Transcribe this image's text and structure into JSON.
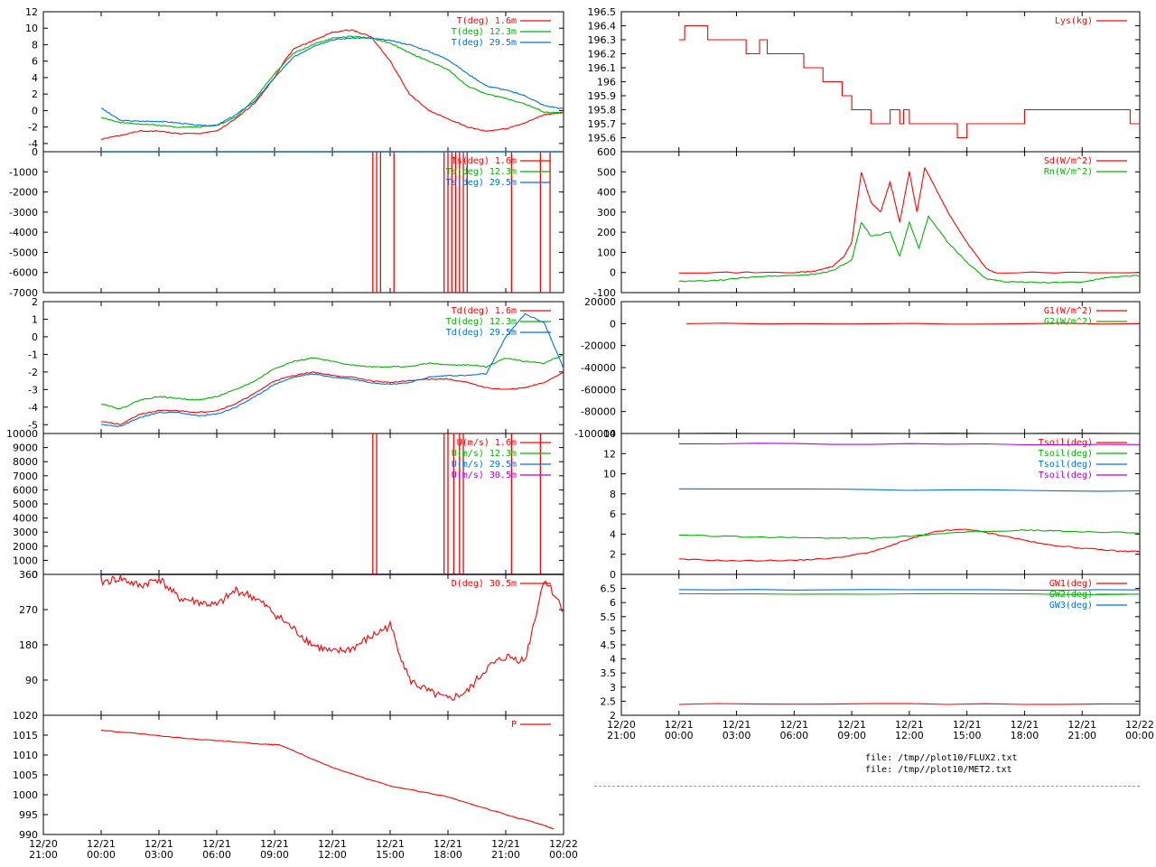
{
  "colors": {
    "red": "#ff0000",
    "green": "#00b400",
    "blue": "#0070e0",
    "purple": "#b000e0"
  },
  "files": [
    "file: /tmp//plot10/FLUX2.txt",
    "file: /tmp//plot10/MET2.txt"
  ],
  "chart_data": [
    {
      "type": "line",
      "ylim": [
        -5,
        12
      ],
      "yticks": [
        "-4",
        "-2",
        "0",
        "2",
        "4",
        "6",
        "8",
        "10",
        "12"
      ],
      "ytick_values": [
        -4,
        -2,
        0,
        2,
        4,
        6,
        8,
        10,
        12
      ],
      "series": [
        {
          "name": "T(deg)  1.6m",
          "color": "red",
          "x": [
            0,
            1,
            2,
            3,
            4,
            5,
            6,
            7,
            8,
            9,
            9.5,
            10,
            11,
            12,
            13,
            14,
            15,
            16,
            17,
            18,
            19,
            20,
            21,
            22,
            23,
            24
          ],
          "values": [
            -3.5,
            -3,
            -2.5,
            -2.5,
            -2.8,
            -2.8,
            -2.5,
            -1,
            1,
            4,
            6,
            7.5,
            8.5,
            9.5,
            9.8,
            9,
            6,
            2,
            0,
            -1,
            -2,
            -2.5,
            -2.2,
            -1.5,
            -0.5,
            -0.2
          ]
        },
        {
          "name": "T(deg) 12.3m",
          "color": "green",
          "x": [
            0,
            1,
            2,
            3,
            4,
            5,
            6,
            7,
            8,
            9,
            10,
            11,
            12,
            13,
            14,
            15,
            16,
            17,
            18,
            19,
            20,
            21,
            22,
            23,
            24
          ],
          "values": [
            -0.8,
            -1.5,
            -1.6,
            -1.8,
            -2,
            -2,
            -1.8,
            -0.8,
            1.5,
            4.5,
            7,
            8,
            8.8,
            9,
            8.8,
            8.2,
            7,
            6,
            5,
            3,
            2,
            1.5,
            0.8,
            -0.2,
            -0.3
          ]
        },
        {
          "name": "T(deg) 29.5m",
          "color": "blue",
          "x": [
            0,
            1,
            2,
            3,
            4,
            5,
            6,
            7,
            8,
            9,
            10,
            11,
            12,
            13,
            14,
            15,
            16,
            17,
            18,
            19,
            20,
            21,
            22,
            23,
            24
          ],
          "values": [
            0.3,
            -1.2,
            -1.3,
            -1.3,
            -1.5,
            -1.8,
            -1.8,
            -0.5,
            1.2,
            4,
            6.5,
            7.8,
            8.6,
            8.8,
            8.8,
            8.5,
            8,
            7.2,
            6.2,
            4.5,
            3,
            2.5,
            1.8,
            0.6,
            0.2
          ]
        }
      ]
    },
    {
      "type": "line",
      "ylim": [
        -7000,
        0
      ],
      "yticks": [
        "0",
        "-1000",
        "-2000",
        "-3000",
        "-4000",
        "-5000",
        "-6000",
        "-7000"
      ],
      "ytick_values": [
        0,
        -1000,
        -2000,
        -3000,
        -4000,
        -5000,
        -6000,
        -7000
      ],
      "series": [
        {
          "name": "Ts(deg)  1.6m",
          "color": "red",
          "values": [
            0
          ],
          "spikes": [
            14.1,
            14.3,
            14.5,
            15.2,
            17.8,
            18,
            18.2,
            18.4,
            18.6,
            18.8,
            19,
            21.3,
            22.8,
            23.3
          ]
        },
        {
          "name": "Ts(deg) 12.3m",
          "color": "green",
          "values": [
            0
          ]
        },
        {
          "name": "Ts(deg) 29.5m",
          "color": "blue",
          "values": [
            0
          ]
        }
      ]
    },
    {
      "type": "line",
      "ylim": [
        -5.5,
        2
      ],
      "yticks": [
        "-5",
        "-4",
        "-3",
        "-2",
        "-1",
        "0",
        "1",
        "2"
      ],
      "ytick_values": [
        -5,
        -4,
        -3,
        -2,
        -1,
        0,
        1,
        2
      ],
      "series": [
        {
          "name": "Td(deg)  1.6m",
          "color": "red",
          "x": [
            0,
            1,
            2,
            3,
            4,
            5,
            6,
            7,
            8,
            9,
            10,
            11,
            12,
            13,
            14,
            15,
            16,
            17,
            18,
            19,
            20,
            21,
            22,
            23,
            24
          ],
          "values": [
            -4.8,
            -5,
            -4.4,
            -4.2,
            -4.2,
            -4.3,
            -4.2,
            -3.8,
            -3.2,
            -2.5,
            -2.2,
            -2,
            -2.2,
            -2.3,
            -2.5,
            -2.6,
            -2.5,
            -2.4,
            -2.4,
            -2.6,
            -2.9,
            -3,
            -2.9,
            -2.6,
            -2
          ]
        },
        {
          "name": "Td(deg) 12.3m",
          "color": "green",
          "x": [
            0,
            1,
            2,
            3,
            4,
            5,
            6,
            7,
            8,
            9,
            10,
            11,
            12,
            13,
            14,
            15,
            16,
            17,
            18,
            19,
            20,
            21,
            22,
            23,
            24
          ],
          "values": [
            -3.8,
            -4.1,
            -3.6,
            -3.4,
            -3.5,
            -3.6,
            -3.4,
            -3,
            -2.5,
            -1.8,
            -1.4,
            -1.2,
            -1.4,
            -1.6,
            -1.7,
            -1.7,
            -1.7,
            -1.5,
            -1.6,
            -1.6,
            -1.7,
            -1.2,
            -1.4,
            -1.5,
            -1
          ]
        },
        {
          "name": "Td(deg) 29.5m",
          "color": "blue",
          "x": [
            0,
            1,
            2,
            3,
            4,
            5,
            6,
            7,
            8,
            9,
            10,
            11,
            12,
            13,
            14,
            15,
            16,
            17,
            18,
            19,
            20,
            21,
            22,
            23,
            24
          ],
          "values": [
            -5,
            -5.1,
            -4.6,
            -4.3,
            -4.3,
            -4.5,
            -4.4,
            -4,
            -3.4,
            -2.7,
            -2.3,
            -2.1,
            -2.3,
            -2.4,
            -2.6,
            -2.7,
            -2.6,
            -2.3,
            -2.2,
            -2.2,
            -2.1,
            0,
            1.3,
            0.8,
            -1.8
          ]
        }
      ]
    },
    {
      "type": "line",
      "ylim": [
        0,
        10000
      ],
      "yticks": [
        "0",
        "1000",
        "2000",
        "3000",
        "4000",
        "5000",
        "6000",
        "7000",
        "8000",
        "9000",
        "10000"
      ],
      "ytick_values": [
        0,
        1000,
        2000,
        3000,
        4000,
        5000,
        6000,
        7000,
        8000,
        9000,
        10000
      ],
      "series": [
        {
          "name": "U(m/s)  1.6m",
          "color": "red",
          "values": [
            0
          ],
          "spikes": [
            14.1,
            14.3,
            17.8,
            18,
            18.3,
            18.6,
            18.8,
            21.3,
            22.8
          ]
        },
        {
          "name": "U(m/s) 12.3m",
          "color": "green",
          "values": [
            0
          ]
        },
        {
          "name": "U(m/s) 29.5m",
          "color": "blue",
          "values": [
            0
          ]
        },
        {
          "name": "U(m/s) 30.5m",
          "color": "purple",
          "values": [
            0
          ]
        }
      ]
    },
    {
      "type": "line",
      "ylim": [
        0,
        360
      ],
      "yticks": [
        "90",
        "180",
        "270",
        "360"
      ],
      "ytick_values": [
        90,
        180,
        270,
        360
      ],
      "series": [
        {
          "name": "D(deg)  30.5m",
          "color": "red",
          "x": [
            0,
            1,
            2,
            3,
            4,
            5,
            6,
            7,
            8,
            9,
            10,
            11,
            12,
            13,
            14,
            15,
            16,
            17,
            18,
            19,
            20,
            21,
            22,
            23,
            24
          ],
          "values": [
            340,
            350,
            330,
            350,
            300,
            290,
            280,
            320,
            300,
            260,
            220,
            180,
            160,
            170,
            200,
            230,
            90,
            60,
            40,
            60,
            120,
            150,
            140,
            350,
            270
          ]
        }
      ]
    },
    {
      "type": "line",
      "ylim": [
        990,
        1020
      ],
      "yticks": [
        "990",
        "995",
        "1000",
        "1005",
        "1010",
        "1015",
        "1020"
      ],
      "ytick_values": [
        990,
        995,
        1000,
        1005,
        1010,
        1015,
        1020
      ],
      "series": [
        {
          "name": "P",
          "color": "red",
          "x": [
            0,
            3,
            6,
            8.5,
            9.3,
            12,
            15,
            18,
            21,
            22.5,
            23.5
          ],
          "values": [
            1016.3,
            1014.8,
            1013.6,
            1012.7,
            1012.5,
            1006.8,
            1002.2,
            999.5,
            995,
            993,
            991.4
          ]
        }
      ],
      "xticks": [
        [
          "12/20",
          "21:00"
        ],
        [
          "12/21",
          "00:00"
        ],
        [
          "12/21",
          "03:00"
        ],
        [
          "12/21",
          "06:00"
        ],
        [
          "12/21",
          "09:00"
        ],
        [
          "12/21",
          "12:00"
        ],
        [
          "12/21",
          "15:00"
        ],
        [
          "12/21",
          "18:00"
        ],
        [
          "12/21",
          "21:00"
        ],
        [
          "12/22",
          "00:00"
        ]
      ]
    },
    {
      "type": "line",
      "ylim": [
        195.5,
        196.5
      ],
      "yticks": [
        "195.6",
        "195.7",
        "195.8",
        "195.9",
        "196",
        "196.1",
        "196.2",
        "196.3",
        "196.4",
        "196.5"
      ],
      "ytick_values": [
        195.6,
        195.7,
        195.8,
        195.9,
        196,
        196.1,
        196.2,
        196.3,
        196.4,
        196.5
      ],
      "series": [
        {
          "name": "Lys(kg)",
          "color": "red",
          "step": true,
          "x": [
            0,
            0.3,
            1.5,
            3.5,
            4.2,
            4.6,
            6,
            6.5,
            7.5,
            8.5,
            9,
            10,
            11,
            11.5,
            11.7,
            12,
            14.5,
            15,
            15.3,
            18,
            23.5,
            24
          ],
          "values": [
            196.3,
            196.4,
            196.3,
            196.2,
            196.3,
            196.2,
            196.2,
            196.1,
            196,
            195.9,
            195.8,
            195.7,
            195.8,
            195.7,
            195.8,
            195.7,
            195.6,
            195.7,
            195.7,
            195.8,
            195.7,
            195.7
          ]
        }
      ]
    },
    {
      "type": "line",
      "ylim": [
        -100,
        600
      ],
      "yticks": [
        "-100",
        "0",
        "100",
        "200",
        "300",
        "400",
        "500",
        "600"
      ],
      "ytick_values": [
        -100,
        0,
        100,
        200,
        300,
        400,
        500,
        600
      ],
      "series": [
        {
          "name": "Sd(W/m^2)",
          "color": "red",
          "x": [
            0,
            6,
            7,
            8,
            8.6,
            9,
            9.5,
            10,
            10.5,
            11,
            11.5,
            12,
            12.4,
            12.8,
            13.2,
            14,
            15,
            16,
            16.5,
            24
          ],
          "values": [
            0,
            0,
            5,
            30,
            80,
            150,
            500,
            350,
            300,
            450,
            250,
            500,
            300,
            520,
            450,
            300,
            150,
            20,
            0,
            0
          ]
        },
        {
          "name": "Rn(W/m^2)",
          "color": "green",
          "x": [
            0,
            2,
            4,
            6,
            7,
            8,
            9,
            9.5,
            10,
            11,
            11.5,
            12,
            12.5,
            13,
            14,
            15,
            16,
            17,
            19,
            21,
            22,
            23,
            24
          ],
          "values": [
            -45,
            -40,
            -20,
            -15,
            -10,
            10,
            60,
            250,
            180,
            200,
            80,
            250,
            120,
            280,
            150,
            50,
            -30,
            -45,
            -50,
            -48,
            -30,
            -20,
            -15
          ]
        }
      ]
    },
    {
      "type": "line",
      "ylim": [
        -100000,
        20000
      ],
      "yticks": [
        "20000",
        "0",
        "-20000",
        "-40000",
        "-60000",
        "-80000",
        "-100000"
      ],
      "ytick_values": [
        20000,
        0,
        -20000,
        -40000,
        -60000,
        -80000,
        -100000
      ],
      "series": [
        {
          "name": "G1(W/m^2)",
          "color": "red",
          "x": [
            0.4,
            24
          ],
          "values": [
            0,
            0
          ]
        },
        {
          "name": "G2(W/m^2)",
          "color": "green",
          "x": [
            0,
            24
          ],
          "values": [
            -100000,
            -100000
          ]
        }
      ]
    },
    {
      "type": "line",
      "ylim": [
        0,
        14
      ],
      "yticks": [
        "0",
        "2",
        "4",
        "6",
        "8",
        "10",
        "12",
        "14"
      ],
      "ytick_values": [
        0,
        2,
        4,
        6,
        8,
        10,
        12,
        14
      ],
      "series": [
        {
          "name": "Tsoil(deg)",
          "color": "red",
          "x": [
            0,
            3,
            6,
            8,
            10,
            12,
            13.5,
            15,
            17,
            19,
            21,
            23,
            24
          ],
          "values": [
            1.5,
            1.35,
            1.4,
            1.6,
            2.2,
            3.5,
            4.3,
            4.5,
            3.8,
            3.0,
            2.6,
            2.3,
            2.3
          ]
        },
        {
          "name": "Tsoil(deg)",
          "color": "green",
          "x": [
            0,
            4,
            8,
            10,
            12,
            14,
            16,
            18,
            20,
            24
          ],
          "values": [
            3.9,
            3.7,
            3.6,
            3.6,
            3.8,
            4.1,
            4.3,
            4.4,
            4.3,
            4.1
          ]
        },
        {
          "name": "Tsoil(deg)",
          "color": "blue",
          "x": [
            0,
            24
          ],
          "values": [
            8.5,
            8.3
          ]
        },
        {
          "name": "Tsoil(deg)",
          "color": "purple",
          "x": [
            0,
            24
          ],
          "values": [
            13,
            12.9
          ]
        }
      ]
    },
    {
      "type": "line",
      "ylim": [
        2,
        7
      ],
      "yticks": [
        "2",
        "2.5",
        "3",
        "3.5",
        "4",
        "4.5",
        "5",
        "5.5",
        "6",
        "6.5"
      ],
      "ytick_values": [
        2,
        2.5,
        3,
        3.5,
        4,
        4.5,
        5,
        5.5,
        6,
        6.5
      ],
      "series": [
        {
          "name": "GW1(deg)",
          "color": "red",
          "x": [
            0,
            24
          ],
          "values": [
            2.4,
            2.4
          ]
        },
        {
          "name": "GW2(deg)",
          "color": "green",
          "x": [
            0,
            24
          ],
          "values": [
            6.3,
            6.3
          ]
        },
        {
          "name": "GW3(deg)",
          "color": "blue",
          "x": [
            0,
            24
          ],
          "values": [
            6.45,
            6.45
          ]
        }
      ],
      "xticks": [
        [
          "12/20",
          "21:00"
        ],
        [
          "12/21",
          "00:00"
        ],
        [
          "12/21",
          "03:00"
        ],
        [
          "12/21",
          "06:00"
        ],
        [
          "12/21",
          "09:00"
        ],
        [
          "12/21",
          "12:00"
        ],
        [
          "12/21",
          "15:00"
        ],
        [
          "12/21",
          "18:00"
        ],
        [
          "12/21",
          "21:00"
        ],
        [
          "12/22",
          "00:00"
        ]
      ]
    }
  ]
}
